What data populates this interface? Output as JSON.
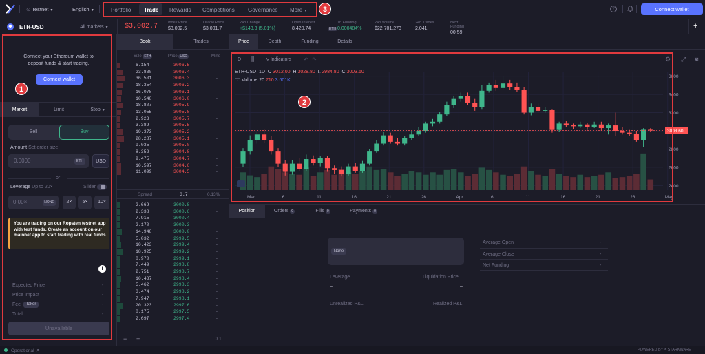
{
  "colors": {
    "accent": "#5973fe",
    "green": "#3fb68b",
    "red": "#ff5353",
    "bg": "#1c1c28",
    "panel": "#2d2d3d",
    "annotation": "#e03a3e"
  },
  "annotations": [
    "1",
    "2",
    "3"
  ],
  "topbar": {
    "logo_icon": "dydx-logo-icon",
    "network": "Testnet",
    "language": "English",
    "nav": [
      "Portfolio",
      "Trade",
      "Rewards",
      "Competitions",
      "Governance",
      "More"
    ],
    "connect": "Connect wallet"
  },
  "market": {
    "symbol": "ETH-USD",
    "all_markets": "All markets",
    "price": "$3,002.7",
    "stats": [
      {
        "label": "Index Price",
        "value": "$3,002.5",
        "color": "#c3c2d4"
      },
      {
        "label": "Oracle Price",
        "value": "$3,001.7",
        "color": "#c3c2d4"
      },
      {
        "label": "24h Change",
        "value": "+$143.3 (5.01%)",
        "color": "#3fb68b"
      },
      {
        "label": "Open Interest",
        "value": "8,420.74",
        "unit": "ETH",
        "color": "#c3c2d4"
      },
      {
        "label": "1h Funding",
        "value": "0.000484%",
        "color": "#3fb68b"
      },
      {
        "label": "24h Volume",
        "value": "$22,701,273",
        "color": "#c3c2d4"
      },
      {
        "label": "24h Trades",
        "value": "2,041",
        "color": "#c3c2d4"
      },
      {
        "label": "Next Funding",
        "value": "00:59",
        "color": "#c3c2d4"
      }
    ],
    "plus": "+"
  },
  "left": {
    "connect_text": "Connect your Ethereum wallet to deposit funds & start trading.",
    "connect_btn": "Connect wallet",
    "order_tabs": [
      "Market",
      "Limit",
      "Stop"
    ],
    "sell": "Sell",
    "buy": "Buy",
    "amount_label": "Amount",
    "amount_hint": "Set order size",
    "amount_placeholder": "0.0000",
    "amount_unit": "ETH",
    "usd": "USD",
    "or": "or",
    "leverage_label": "Leverage",
    "leverage_hint": "Up to 20×",
    "slider": "Slider",
    "leverage_placeholder": "0.00×",
    "leverage_side": "NONE",
    "lev_buttons": [
      "2×",
      "5×",
      "10×"
    ],
    "notice": "You are trading on our Ropsten testnet app with test funds. Create an account on our mainnet app to start trading with real funds",
    "info_icon": "i",
    "summary": [
      {
        "label": "Expected Price",
        "value": "-"
      },
      {
        "label": "Price Impact",
        "value": "-"
      },
      {
        "label": "Fee",
        "tag": "Taker",
        "value": "-"
      },
      {
        "label": "Total",
        "value": "-"
      }
    ],
    "unavailable": "Unavailable"
  },
  "book": {
    "tabs": [
      "Book",
      "Trades"
    ],
    "headers": {
      "size": "Size",
      "size_unit": "ETH",
      "price": "Price",
      "price_unit": "USD",
      "mine": "Mine"
    },
    "asks": [
      [
        "6.154",
        "3006.5",
        "-"
      ],
      [
        "23.830",
        "3006.4",
        "-"
      ],
      [
        "36.501",
        "3006.3",
        "-"
      ],
      [
        "18.354",
        "3006.2",
        "-"
      ],
      [
        "16.078",
        "3006.1",
        "-"
      ],
      [
        "10.548",
        "3006.0",
        "-"
      ],
      [
        "18.807",
        "3005.9",
        "-"
      ],
      [
        "13.055",
        "3005.8",
        "-"
      ],
      [
        "2.923",
        "3005.7",
        "-"
      ],
      [
        "3.389",
        "3005.5",
        "-"
      ],
      [
        "19.373",
        "3005.2",
        "-"
      ],
      [
        "28.287",
        "3005.1",
        "-"
      ],
      [
        "9.035",
        "3005.0",
        "-"
      ],
      [
        "8.352",
        "3004.8",
        "-"
      ],
      [
        "9.475",
        "3004.7",
        "-"
      ],
      [
        "10.597",
        "3004.6",
        "-"
      ],
      [
        "11.099",
        "3004.5",
        "-"
      ]
    ],
    "spread": {
      "label": "Spread",
      "value": "3.7",
      "pct": "0.13%"
    },
    "bids": [
      [
        "2.669",
        "3000.8",
        "-"
      ],
      [
        "2.338",
        "3000.6",
        "-"
      ],
      [
        "7.915",
        "3000.4",
        "-"
      ],
      [
        "2.170",
        "3000.3",
        "-"
      ],
      [
        "14.948",
        "3000.0",
        "-"
      ],
      [
        "5.032",
        "2999.5",
        "-"
      ],
      [
        "10.423",
        "2999.4",
        "-"
      ],
      [
        "18.925",
        "2999.2",
        "-"
      ],
      [
        "8.970",
        "2999.1",
        "-"
      ],
      [
        "7.449",
        "2998.8",
        "-"
      ],
      [
        "2.751",
        "2998.7",
        "-"
      ],
      [
        "10.437",
        "2998.4",
        "-"
      ],
      [
        "5.462",
        "2998.3",
        "-"
      ],
      [
        "3.474",
        "2998.2",
        "-"
      ],
      [
        "7.947",
        "2998.1",
        "-"
      ],
      [
        "20.323",
        "2997.6",
        "-"
      ],
      [
        "8.175",
        "2997.5",
        "-"
      ],
      [
        "2.697",
        "2997.4",
        "-"
      ]
    ],
    "footer": {
      "minus": "−",
      "plus": "+",
      "step": "0.1"
    }
  },
  "chart_tabs": [
    "Price",
    "Depth",
    "Funding",
    "Details"
  ],
  "chart_toolbar": {
    "interval": "D",
    "indicators": "Indicators"
  },
  "chart_legend": {
    "symbol": "ETH-USD",
    "interval": "1D",
    "o_label": "O",
    "o": "3012.00",
    "h_label": "H",
    "h": "3028.80",
    "l_label": "L",
    "l": "2984.80",
    "c_label": "C",
    "c": "3003.60",
    "volume_label": "Volume 20",
    "vol_a": "710",
    "vol_b": "3.601K",
    "last_price_tag": "3003.60"
  },
  "chart_data": {
    "type": "candlestick",
    "x_ticks": [
      "Mar",
      "6",
      "11",
      "16",
      "21",
      "26",
      "Apr",
      "6",
      "11",
      "16",
      "21",
      "26",
      "May"
    ],
    "y_ticks": [
      3600,
      3400,
      3200,
      3000,
      2800,
      2600,
      2400
    ],
    "ylim": [
      2350,
      3650
    ],
    "last_price": 3003.6,
    "candles": [
      [
        2640,
        2780,
        2810,
        2600
      ],
      [
        2780,
        2900,
        2950,
        2740
      ],
      [
        2900,
        2960,
        2990,
        2860
      ],
      [
        2960,
        2900,
        3020,
        2870
      ],
      [
        2900,
        2780,
        2940,
        2740
      ],
      [
        2780,
        2640,
        2810,
        2600
      ],
      [
        2640,
        2550,
        2680,
        2510
      ],
      [
        2550,
        2640,
        2680,
        2520
      ],
      [
        2640,
        2580,
        2700,
        2560
      ],
      [
        2580,
        2690,
        2740,
        2560
      ],
      [
        2690,
        2650,
        2730,
        2620
      ],
      [
        2650,
        2700,
        2720,
        2610
      ],
      [
        2700,
        2590,
        2720,
        2550
      ],
      [
        2590,
        2570,
        2620,
        2530
      ],
      [
        2570,
        2530,
        2610,
        2500
      ],
      [
        2530,
        2610,
        2640,
        2510
      ],
      [
        2610,
        2560,
        2650,
        2540
      ],
      [
        2560,
        2640,
        2670,
        2540
      ],
      [
        2640,
        2780,
        2800,
        2620
      ],
      [
        2780,
        2860,
        2900,
        2760
      ],
      [
        2860,
        2950,
        2990,
        2840
      ],
      [
        2950,
        2880,
        2980,
        2860
      ],
      [
        2880,
        2860,
        2920,
        2840
      ],
      [
        2860,
        2920,
        2940,
        2840
      ],
      [
        2920,
        2960,
        3000,
        2900
      ],
      [
        2960,
        3000,
        3040,
        2940
      ],
      [
        3000,
        3080,
        3100,
        2980
      ],
      [
        3080,
        3100,
        3130,
        3050
      ],
      [
        3100,
        3180,
        3210,
        3080
      ],
      [
        3180,
        3280,
        3320,
        3160
      ],
      [
        3280,
        3350,
        3380,
        3250
      ],
      [
        3350,
        3380,
        3420,
        3320
      ],
      [
        3380,
        3310,
        3420,
        3280
      ],
      [
        3310,
        3260,
        3350,
        3220
      ],
      [
        3260,
        3440,
        3500,
        3240
      ],
      [
        3440,
        3500,
        3530,
        3420
      ],
      [
        3500,
        3470,
        3560,
        3440
      ],
      [
        3470,
        3520,
        3600,
        3450
      ],
      [
        3520,
        3480,
        3560,
        3450
      ],
      [
        3480,
        3450,
        3530,
        3430
      ],
      [
        3450,
        3200,
        3480,
        3180
      ],
      [
        3200,
        3260,
        3300,
        3170
      ],
      [
        3260,
        3220,
        3300,
        3200
      ],
      [
        3220,
        3230,
        3260,
        3200
      ],
      [
        3230,
        3010,
        3240,
        2980
      ],
      [
        3010,
        3080,
        3100,
        2990
      ],
      [
        3080,
        3060,
        3110,
        3040
      ],
      [
        3060,
        3050,
        3080,
        3020
      ],
      [
        3050,
        3070,
        3100,
        3030
      ],
      [
        3070,
        3040,
        3090,
        3010
      ],
      [
        3040,
        3070,
        3100,
        3030
      ],
      [
        3070,
        3030,
        3100,
        3000
      ],
      [
        3030,
        3060,
        3080,
        2960
      ],
      [
        3060,
        3000,
        3200,
        2940
      ],
      [
        3000,
        2980,
        3040,
        2960
      ],
      [
        2980,
        2970,
        3010,
        2940
      ],
      [
        2970,
        2900,
        3000,
        2880
      ],
      [
        2900,
        3012,
        3028.8,
        2820
      ],
      [
        3012,
        3003.6,
        3028.8,
        2984.8
      ]
    ],
    "volume": [
      30,
      25,
      22,
      28,
      40,
      35,
      30,
      28,
      26,
      38,
      24,
      30,
      34,
      26,
      36,
      30,
      28,
      32,
      40,
      34,
      36,
      30,
      24,
      28,
      32,
      30,
      26,
      30,
      26,
      34,
      36,
      30,
      24,
      28,
      38,
      34,
      30,
      26,
      24,
      28,
      40,
      32,
      26,
      24,
      36,
      28,
      24,
      22,
      26,
      22,
      24,
      26,
      30,
      20,
      22,
      24,
      28,
      62,
      18
    ]
  },
  "position_tabs": [
    {
      "label": "Position"
    },
    {
      "label": "Orders",
      "count": "0"
    },
    {
      "label": "Fills",
      "count": "0"
    },
    {
      "label": "Payments",
      "count": "0"
    }
  ],
  "position": {
    "none": "None",
    "leverage_label": "Leverage",
    "leverage_value": "–",
    "liq_label": "Liquidation Price",
    "liq_value": "–",
    "upnl_label": "Unrealized P&L",
    "upnl_value": "–",
    "rpnl_label": "Realized P&L",
    "rpnl_value": "–",
    "right": [
      {
        "label": "Average Open",
        "value": "-"
      },
      {
        "label": "Average Close",
        "value": "-"
      },
      {
        "label": "Net Funding",
        "value": "-"
      }
    ]
  },
  "footer": {
    "status": "Operational",
    "powered": "POWERED BY",
    "brand": "STARKWARE"
  }
}
